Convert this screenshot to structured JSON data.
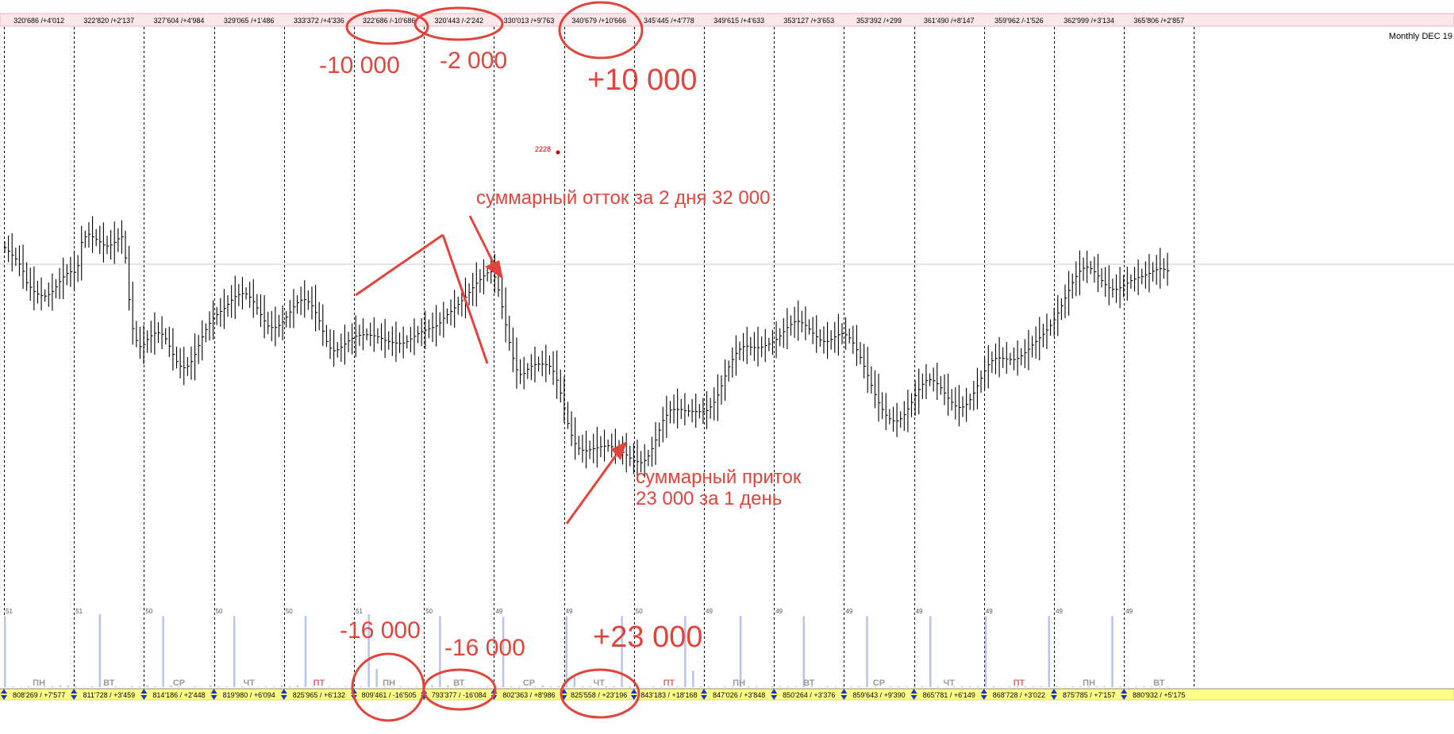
{
  "chart_data": {
    "type": "bar",
    "instrument": "Monthly DEC 19",
    "top_ribbon": [
      "320'686 /+4'012",
      "322'820 /+2'137",
      "327'604 /+4'984",
      "329'065 /+1'486",
      "333'372 /+4'336",
      "322'686 /-10'686",
      "320'443 /-2'242",
      "330'013 /+9'763",
      "340'679 /+10'666",
      "345'445 /+4'778",
      "349'615 /+4'633",
      "353'127 /+3'653",
      "353'392 /+299",
      "361'490 /+8'147",
      "359'962 /-1'526",
      "362'999 /+3'134",
      "365'806 /+2'857"
    ],
    "bottom_ribbon": [
      "808'269 / +7'577",
      "811'728 / +3'459",
      "814'186 / +2'448",
      "819'980 / +6'094",
      "825'965 / +6'132",
      "809'461 / -16'505",
      "793'377 / -16'084",
      "802'363 / +8'986",
      "825'558 / +23'196",
      "843'183 / +18'168",
      "847'026 / +3'848",
      "850'264 / +3'376",
      "859'643 / +9'390",
      "865'781 / +6'149",
      "868'728 / +3'022",
      "875'785 / +7'157",
      "880'932 / +5'175"
    ],
    "day_labels": [
      "ПН",
      "ВТ",
      "СР",
      "ЧТ",
      "ПТ",
      "ПН",
      "ВТ",
      "СР",
      "ЧТ",
      "ПТ",
      "ПН",
      "ВТ",
      "СР",
      "ЧТ",
      "ПТ",
      "ПН",
      "ВТ"
    ],
    "day_colors": [
      "#9a9a9a",
      "#9a9a9a",
      "#9a9a9a",
      "#9a9a9a",
      "#e06b6b",
      "#9a9a9a",
      "#9a9a9a",
      "#9a9a9a",
      "#9a9a9a",
      "#e06b6b",
      "#9a9a9a",
      "#9a9a9a",
      "#9a9a9a",
      "#9a9a9a",
      "#e06b6b",
      "#9a9a9a",
      "#9a9a9a"
    ],
    "volume_labels": [
      "51",
      "51",
      "50",
      "50",
      "50",
      "51",
      "50",
      "49",
      "49",
      "50",
      "49",
      "49",
      "49",
      "49",
      "49",
      "49",
      "49"
    ],
    "marker_label": "2228",
    "price_ylim": [
      0,
      100
    ],
    "price_closes": [
      72.0,
      71.3,
      70.5,
      69.8,
      68.8,
      67.4,
      65.2,
      64.3,
      63.5,
      63.0,
      62.7,
      62.6,
      62.9,
      63.5,
      64.4,
      65.4,
      66.3,
      67.0,
      67.3,
      67.2,
      68.5,
      73.0,
      74.1,
      74.6,
      74.1,
      73.6,
      73.1,
      72.5,
      72.3,
      72.5,
      73.0,
      73.7,
      74.1,
      70.0,
      61.9,
      56.3,
      54.0,
      52.8,
      53.2,
      54.2,
      54.9,
      55.4,
      55.5,
      55.2,
      54.3,
      52.9,
      51.3,
      49.9,
      49.0,
      48.7,
      49.0,
      49.9,
      51.3,
      53.0,
      54.7,
      56.1,
      57.3,
      58.3,
      59.0,
      59.6,
      60.2,
      61.0,
      61.8,
      62.5,
      62.9,
      63.1,
      63.0,
      62.4,
      61.5,
      60.3,
      59.0,
      57.8,
      56.8,
      56.5,
      56.5,
      56.9,
      57.6,
      58.5,
      59.5,
      60.5,
      61.3,
      61.8,
      61.9,
      61.5,
      60.7,
      59.4,
      57.8,
      55.8,
      53.8,
      52.5,
      52.0,
      52.2,
      52.7,
      53.3,
      53.9,
      54.4,
      54.8,
      55.0,
      55.1,
      55.1,
      55.0,
      54.9,
      54.7,
      54.4,
      54.0,
      53.8,
      53.6,
      53.5,
      53.4,
      53.5,
      53.8,
      54.3,
      54.8,
      55.3,
      55.7,
      56.0,
      56.3,
      56.5,
      56.8,
      57.4,
      58.3,
      59.0,
      59.6,
      60.3,
      61.0,
      61.7,
      62.4,
      63.3,
      64.2,
      65.1,
      65.8,
      66.5,
      67.1,
      67.3,
      66.3,
      63.8,
      60.5,
      57.0,
      53.6,
      50.5,
      48.3,
      47.4,
      47.6,
      48.4,
      49.0,
      49.3,
      49.4,
      49.4,
      49.3,
      49.0,
      48.0,
      46.3,
      43.8,
      40.9,
      37.9,
      35.6,
      34.0,
      33.1,
      32.7,
      32.6,
      32.8,
      33.0,
      33.2,
      33.4,
      33.5,
      33.6,
      33.4,
      33.2,
      32.8,
      32.3,
      31.8,
      31.2,
      30.7,
      30.5,
      30.3,
      30.7,
      31.6,
      33.0,
      34.7,
      36.6,
      38.5,
      39.5,
      40.5,
      40.6,
      40.6,
      40.6,
      40.4,
      40.3,
      40.2,
      40.2,
      40.2,
      40.2,
      40.4,
      41.1,
      42.0,
      43.4,
      45.2,
      47.1,
      48.9,
      50.3,
      51.5,
      52.3,
      52.8,
      52.9,
      52.7,
      52.6,
      52.6,
      52.7,
      53.0,
      53.3,
      53.7,
      54.2,
      54.9,
      55.7,
      56.5,
      57.1,
      57.6,
      57.7,
      57.4,
      56.9,
      56.2,
      55.4,
      54.7,
      54.1,
      53.8,
      53.8,
      54.2,
      54.7,
      55.1,
      55.3,
      55.1,
      54.5,
      53.5,
      52.2,
      50.7,
      49.0,
      47.2,
      45.3,
      43.5,
      41.9,
      40.6,
      39.5,
      38.8,
      38.4,
      38.4,
      38.8,
      39.6,
      40.7,
      42.0,
      43.3,
      44.5,
      45.5,
      46.2,
      46.4,
      46.2,
      45.6,
      44.8,
      43.8,
      42.8,
      42.0,
      41.3,
      41.0,
      41.1,
      41.6,
      42.5,
      43.8,
      45.2,
      46.7,
      48.1,
      49.3,
      50.1,
      50.5,
      50.6,
      50.5,
      50.4,
      50.3,
      50.3,
      50.5,
      51.0,
      51.6,
      52.3,
      53.1,
      53.8,
      54.5,
      55.2,
      56.0,
      56.9,
      58.0,
      59.3,
      60.7,
      62.2,
      63.7,
      65.2,
      66.4,
      67.4,
      68.0,
      68.2,
      67.9,
      67.3,
      66.5,
      65.6,
      64.8,
      64.2,
      63.9,
      63.9,
      64.2,
      64.6,
      65.1,
      65.6,
      65.9,
      66.2,
      66.4,
      66.7,
      67.0,
      67.4,
      67.7,
      67.9,
      67.8,
      67.5
    ],
    "volume_values": [
      78,
      1,
      0.5,
      1,
      0.5,
      1,
      1,
      2,
      2,
      1,
      0.5,
      1,
      80,
      0.5,
      1,
      0.5,
      1,
      1,
      2,
      1,
      78,
      2,
      1,
      0.5,
      1,
      0.5,
      2,
      1,
      1,
      78,
      1,
      0.5,
      0.5,
      1,
      1,
      2,
      1,
      2,
      78,
      1,
      0.5,
      1,
      0.5,
      1,
      1,
      1,
      80,
      20,
      1,
      0.5,
      1,
      0.5,
      1,
      1,
      2,
      78,
      2,
      1,
      1,
      0.5,
      0.5,
      1,
      1,
      77,
      1,
      1,
      0.5,
      1,
      2,
      1,
      1,
      78,
      12,
      1,
      1,
      0.5,
      1,
      1,
      78,
      1,
      0.5,
      0.5,
      1,
      1,
      1,
      1,
      78,
      18,
      1,
      1,
      0.5,
      1,
      1,
      78,
      1,
      1,
      0.5,
      1,
      1,
      1,
      1,
      78,
      1,
      0.5,
      1,
      1,
      1,
      1,
      1,
      78,
      1,
      0.5,
      1,
      1,
      1,
      1,
      1,
      78,
      1,
      0.5,
      1,
      1,
      1,
      1,
      78,
      1,
      0.5,
      1,
      1,
      1,
      1,
      1,
      78,
      1,
      0.5,
      1,
      1,
      1,
      1,
      1,
      78,
      1,
      0.5,
      1,
      1,
      1,
      1,
      1
    ],
    "annotations": {
      "top_minus_10000": "-10 000",
      "top_minus_2000": "-2 000",
      "top_plus_10000": "+10 000",
      "bottom_minus_16000_a": "-16 000",
      "bottom_minus_16000_b": "-16 000",
      "bottom_plus_23000": "+23 000",
      "outflow_text": "суммарный отток за 2 дня 32 000",
      "inflow_line1": "суммарный приток",
      "inflow_line2": "23 000 за 1 день"
    },
    "colors": {
      "annotation": "#e0443a",
      "top_ribbon_bg": "#fbe7ea",
      "bottom_ribbon_bg": "#ffff88",
      "bars": "#000000",
      "volume": "#b8c4ea",
      "session_line": "#000000",
      "marker": "#cc0000"
    }
  }
}
